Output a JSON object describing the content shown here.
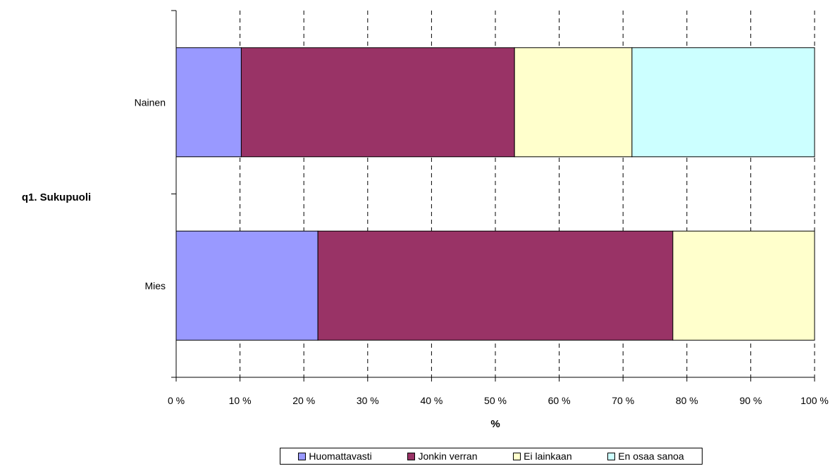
{
  "chart_data": {
    "type": "bar",
    "orientation": "horizontal",
    "stacked": true,
    "normalized_percent": true,
    "ylabel": "q1. Sukupuoli",
    "xlabel": "%",
    "categories": [
      "Mies",
      "Nainen"
    ],
    "series": [
      {
        "name": "Huomattavasti",
        "color": "#9999FF",
        "values": [
          22.2,
          10.2
        ]
      },
      {
        "name": "Jonkin verran",
        "color": "#993366",
        "values": [
          55.6,
          42.8
        ]
      },
      {
        "name": "Ei lainkaan",
        "color": "#FFFFCC",
        "values": [
          22.2,
          18.4
        ]
      },
      {
        "name": "En osaa sanoa",
        "color": "#CCFFFF",
        "values": [
          0,
          28.6
        ]
      }
    ],
    "xlim": [
      0,
      100
    ],
    "xticks": [
      "0 %",
      "10 %",
      "20 %",
      "30 %",
      "40 %",
      "50 %",
      "60 %",
      "70 %",
      "80 %",
      "90 %",
      "100 %"
    ],
    "grid": true,
    "grid_style": "dashed-vertical",
    "legend_position": "bottom"
  }
}
